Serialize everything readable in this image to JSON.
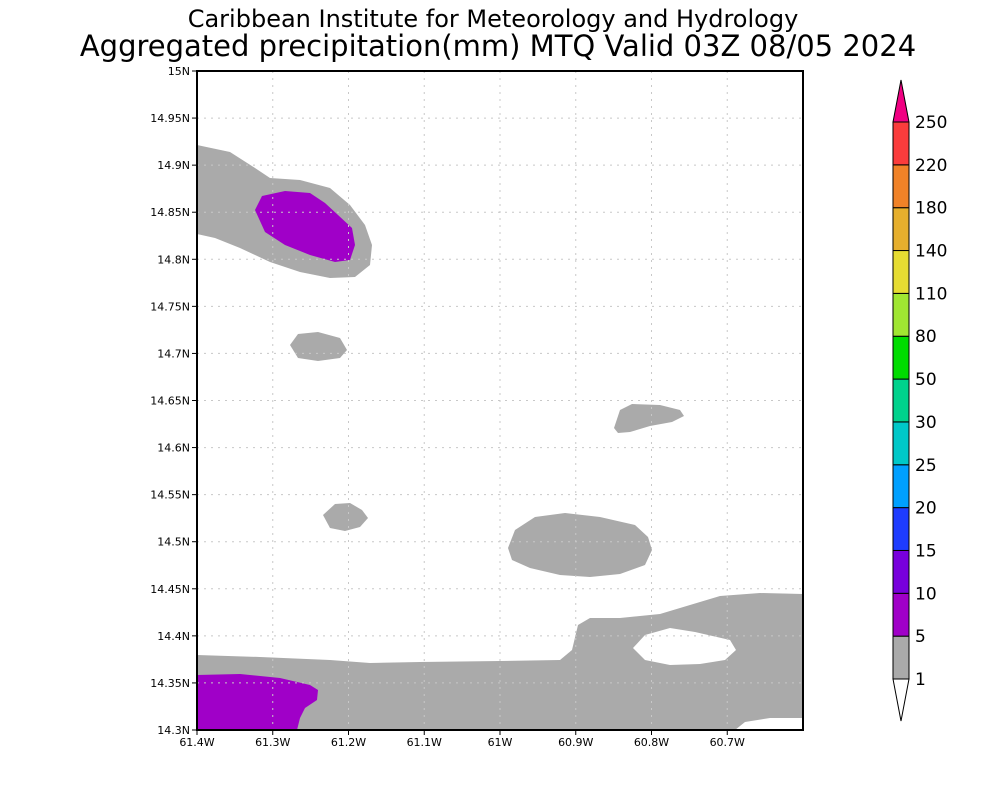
{
  "chart_data": {
    "type": "heatmap",
    "title": "Caribbean Institute for Meteorology and Hydrology",
    "subtitle": "Aggregated precipitation(mm) MTQ Valid 03Z 08/05 2024",
    "xlabel": "",
    "ylabel": "",
    "xlim": [
      -61.4,
      -60.6
    ],
    "ylim": [
      14.3,
      15.0
    ],
    "grid": true,
    "x_ticks": [
      {
        "value": -61.4,
        "label": "61.4W"
      },
      {
        "value": -61.3,
        "label": "61.3W"
      },
      {
        "value": -61.2,
        "label": "61.2W"
      },
      {
        "value": -61.1,
        "label": "61.1W"
      },
      {
        "value": -61.0,
        "label": "61W"
      },
      {
        "value": -60.9,
        "label": "60.9W"
      },
      {
        "value": -60.8,
        "label": "60.8W"
      },
      {
        "value": -60.7,
        "label": "60.7W"
      }
    ],
    "y_ticks": [
      {
        "value": 14.3,
        "label": "14.3N"
      },
      {
        "value": 14.35,
        "label": "14.35N"
      },
      {
        "value": 14.4,
        "label": "14.4N"
      },
      {
        "value": 14.45,
        "label": "14.45N"
      },
      {
        "value": 14.5,
        "label": "14.5N"
      },
      {
        "value": 14.55,
        "label": "14.55N"
      },
      {
        "value": 14.6,
        "label": "14.6N"
      },
      {
        "value": 14.65,
        "label": "14.65N"
      },
      {
        "value": 14.7,
        "label": "14.7N"
      },
      {
        "value": 14.75,
        "label": "14.75N"
      },
      {
        "value": 14.8,
        "label": "14.8N"
      },
      {
        "value": 14.85,
        "label": "14.85N"
      },
      {
        "value": 14.9,
        "label": "14.9N"
      },
      {
        "value": 14.95,
        "label": "14.95N"
      },
      {
        "value": 15.0,
        "label": "15N"
      }
    ],
    "colorbar": {
      "placement": "right",
      "levels": [
        "1",
        "5",
        "10",
        "15",
        "20",
        "25",
        "30",
        "50",
        "80",
        "110",
        "140",
        "180",
        "220",
        "250"
      ],
      "colors": [
        "#aaaaaa",
        "#a000c8",
        "#7800dc",
        "#1e3cff",
        "#00a0ff",
        "#00c8c8",
        "#00d28c",
        "#00dc00",
        "#a0e632",
        "#e6dc32",
        "#e6af2d",
        "#f08228",
        "#fa3c3c"
      ],
      "under_color": "#ffffff",
      "over_color": "#f00082"
    },
    "regions": [
      {
        "level": "1-5",
        "approx_center": [
          -61.28,
          14.84
        ]
      },
      {
        "level": "5-10",
        "approx_center": [
          -61.25,
          14.83
        ]
      },
      {
        "level": "1-5",
        "approx_center": [
          -61.24,
          14.705
        ]
      },
      {
        "level": "1-5",
        "approx_center": [
          -61.2,
          14.525
        ]
      },
      {
        "level": "1-5",
        "approx_center": [
          -60.8,
          14.63
        ]
      },
      {
        "level": "1-5",
        "approx_center": [
          -60.9,
          14.49
        ]
      },
      {
        "level": "1-5",
        "approx_center": [
          -61.0,
          14.35
        ]
      },
      {
        "level": "5-10",
        "approx_center": [
          -61.33,
          14.33
        ]
      }
    ]
  }
}
